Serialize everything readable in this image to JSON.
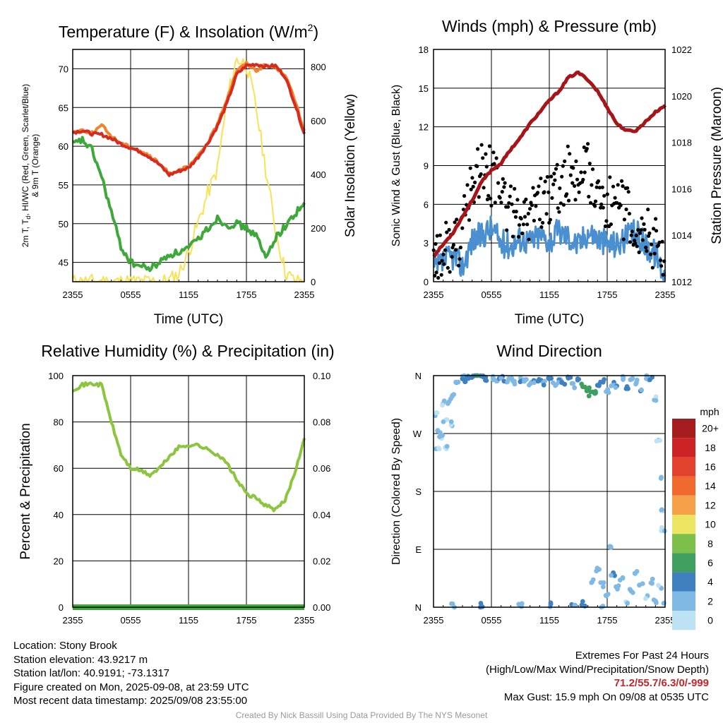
{
  "chart_data": [
    {
      "type": "line",
      "title": "Temperature (F) & Insolation (W/m²)",
      "xlabel": "Time (UTC)",
      "ylabel": "2m T, Td, HI/WC (Red, Green, Scarlet/Blue) & 9m T (Orange)",
      "ylabel_lines": [
        "2m T, T",
        "d",
        ", HI/WC (Red, Green, Scarlet/Blue)",
        "& 9m T (Orange)"
      ],
      "y2label": "Solar Insolation (Yellow)",
      "x_ticks": [
        "2355",
        "0555",
        "1155",
        "1755",
        "2355"
      ],
      "ylim": [
        42.5,
        72.5
      ],
      "y_ticks": [
        45,
        50,
        55,
        60,
        65,
        70
      ],
      "y2lim": [
        0,
        865
      ],
      "y2_ticks": [
        0,
        200,
        400,
        600,
        800
      ],
      "x_hours": [
        0,
        1,
        2,
        3,
        4,
        5,
        6,
        7,
        8,
        9,
        10,
        11,
        12,
        13,
        14,
        15,
        16,
        17,
        18,
        19,
        20,
        21,
        22,
        23,
        24
      ],
      "series": [
        {
          "key": "temp_2m",
          "color": "#d62c1f",
          "values": [
            61.8,
            62.0,
            61.6,
            61.5,
            61.0,
            60.3,
            59.8,
            59.3,
            58.6,
            57.6,
            56.3,
            56.8,
            57.2,
            58.6,
            60.4,
            62.6,
            65.6,
            69.3,
            70.4,
            70.6,
            70.3,
            70.4,
            69.0,
            65.6,
            61.6
          ]
        },
        {
          "key": "temp_9m",
          "color": "#f0842c",
          "values": [
            61.8,
            62.1,
            61.7,
            62.7,
            61.3,
            60.4,
            59.9,
            59.4,
            58.7,
            57.7,
            56.5,
            56.9,
            57.3,
            58.7,
            60.5,
            62.8,
            66.2,
            69.8,
            70.7,
            69.8,
            70.5,
            70.2,
            69.3,
            66.0,
            62.0
          ]
        },
        {
          "key": "dewpoint_2m",
          "color": "#3fa83a",
          "values": [
            60.2,
            60.8,
            59.5,
            56.0,
            51.5,
            47.0,
            45.0,
            44.5,
            44.2,
            45.0,
            46.0,
            46.3,
            46.8,
            48.0,
            49.4,
            50.7,
            49.8,
            50.0,
            49.4,
            48.5,
            45.5,
            48.2,
            49.6,
            51.2,
            52.7
          ]
        },
        {
          "key": "insolation",
          "axis": "right",
          "color": "#f7e356",
          "values": [
            0,
            0,
            0,
            0,
            0,
            0,
            0,
            0,
            0,
            0,
            5,
            30,
            110,
            220,
            330,
            420,
            680,
            830,
            810,
            650,
            420,
            200,
            40,
            0,
            0
          ]
        }
      ]
    },
    {
      "type": "line",
      "title": "Winds (mph) & Pressure (mb)",
      "xlabel": "Time (UTC)",
      "ylabel": "Sonic Wind & Gust (Blue, Black)",
      "y2label": "Station Pressure (Maroon)",
      "x_ticks": [
        "2355",
        "0555",
        "1155",
        "1755",
        "2355"
      ],
      "ylim": [
        0,
        18
      ],
      "y_ticks": [
        0,
        3,
        6,
        9,
        12,
        15,
        18
      ],
      "y2lim": [
        1012,
        1022
      ],
      "y2_ticks": [
        1012,
        1014,
        1016,
        1018,
        1020,
        1022
      ],
      "x_hours": [
        0,
        1,
        2,
        3,
        4,
        5,
        6,
        7,
        8,
        9,
        10,
        11,
        12,
        13,
        14,
        15,
        16,
        17,
        18,
        19,
        20,
        21,
        22,
        23,
        24
      ],
      "series": [
        {
          "key": "sonic_wind",
          "color": "#4a90d0",
          "values": [
            0.8,
            1.5,
            2.0,
            1.2,
            3.2,
            3.6,
            4.2,
            3.0,
            2.8,
            3.4,
            3.1,
            3.6,
            3.2,
            3.9,
            3.5,
            2.8,
            3.9,
            3.4,
            3.0,
            2.9,
            3.4,
            3.8,
            2.8,
            2.2,
            0.4
          ]
        },
        {
          "key": "gust",
          "color": "#000000",
          "style": "points",
          "values": [
            1.2,
            2.6,
            2.4,
            3.8,
            7.5,
            9.2,
            8.1,
            7.2,
            5.5,
            5.4,
            5.0,
            6.1,
            6.4,
            7.2,
            8.4,
            7.9,
            8.6,
            6.8,
            5.9,
            5.8,
            5.4,
            4.6,
            3.8,
            3.0,
            1.2
          ]
        },
        {
          "key": "pressure",
          "axis": "right",
          "color": "#a6151a",
          "values": [
            1013.1,
            1013.6,
            1014.1,
            1014.8,
            1015.5,
            1016.3,
            1016.8,
            1017.1,
            1017.7,
            1018.2,
            1018.8,
            1019.3,
            1019.8,
            1020.2,
            1020.8,
            1021.0,
            1020.7,
            1020.2,
            1019.5,
            1018.8,
            1018.5,
            1018.5,
            1018.9,
            1019.3,
            1019.6
          ]
        }
      ]
    },
    {
      "type": "line",
      "title": "Relative Humidity (%) & Precipitation (in)",
      "ylabel": "Percent & Precipitation",
      "x_ticks": [
        "2355",
        "0555",
        "1155",
        "1755",
        "2355"
      ],
      "ylim": [
        0,
        100
      ],
      "y_ticks": [
        0,
        20,
        40,
        60,
        80,
        100
      ],
      "y2lim": [
        0,
        0.1
      ],
      "y2_ticks": [
        "0.00",
        "0.02",
        "0.04",
        "0.06",
        "0.08",
        "0.10"
      ],
      "x_hours": [
        0,
        1,
        2,
        3,
        4,
        5,
        6,
        7,
        8,
        9,
        10,
        11,
        12,
        13,
        14,
        15,
        16,
        17,
        18,
        19,
        20,
        21,
        22,
        23,
        24
      ],
      "series": [
        {
          "key": "rh",
          "color": "#8cc63f",
          "values": [
            94,
            96,
            96.5,
            96,
            80,
            66,
            60,
            59,
            57,
            60,
            65,
            69,
            70,
            70,
            68,
            66,
            62,
            55,
            49,
            47,
            44,
            42,
            46,
            58,
            73
          ]
        },
        {
          "key": "precipitation",
          "axis": "right",
          "color": "#3fa83a",
          "values": [
            0,
            0,
            0,
            0,
            0,
            0,
            0,
            0,
            0,
            0,
            0,
            0,
            0,
            0,
            0,
            0,
            0,
            0,
            0,
            0,
            0,
            0,
            0,
            0,
            0
          ]
        }
      ]
    },
    {
      "type": "scatter",
      "title": "Wind Direction",
      "ylabel": "Direction (Colored By Speed)",
      "x_ticks": [
        "2355",
        "0555",
        "1155",
        "1755",
        "2355"
      ],
      "y_ticks": [
        "N",
        "E",
        "S",
        "W",
        "N"
      ],
      "ylim": [
        0,
        360
      ],
      "points": [
        {
          "h": 0.2,
          "d": 300,
          "s": 1
        },
        {
          "h": 0.4,
          "d": 245,
          "s": 1
        },
        {
          "h": 0.6,
          "d": 275,
          "s": 1
        },
        {
          "h": 0.8,
          "d": 265,
          "s": 1
        },
        {
          "h": 1.0,
          "d": 318,
          "s": 1
        },
        {
          "h": 1.2,
          "d": 290,
          "s": 1
        },
        {
          "h": 1.4,
          "d": 250,
          "s": 1
        },
        {
          "h": 1.6,
          "d": 320,
          "s": 2
        },
        {
          "h": 1.8,
          "d": 285,
          "s": 1
        },
        {
          "h": 2.0,
          "d": 330,
          "s": 2
        },
        {
          "h": 2.5,
          "d": 352,
          "s": 3
        },
        {
          "h": 3.0,
          "d": 358,
          "s": 3
        },
        {
          "h": 3.3,
          "d": 354,
          "s": 4
        },
        {
          "h": 3.6,
          "d": 357,
          "s": 4
        },
        {
          "h": 4.0,
          "d": 356,
          "s": 5
        },
        {
          "h": 4.5,
          "d": 359,
          "s": 5
        },
        {
          "h": 5.0,
          "d": 358,
          "s": 4
        },
        {
          "h": 5.5,
          "d": 355,
          "s": 4
        },
        {
          "h": 6.0,
          "d": 357,
          "s": 3
        },
        {
          "h": 6.5,
          "d": 352,
          "s": 2
        },
        {
          "h": 7.0,
          "d": 355,
          "s": 3
        },
        {
          "h": 7.5,
          "d": 350,
          "s": 3
        },
        {
          "h": 8.0,
          "d": 356,
          "s": 2
        },
        {
          "h": 8.5,
          "d": 349,
          "s": 2
        },
        {
          "h": 9.0,
          "d": 353,
          "s": 3
        },
        {
          "h": 9.5,
          "d": 351,
          "s": 2
        },
        {
          "h": 10.0,
          "d": 347,
          "s": 2
        },
        {
          "h": 10.5,
          "d": 350,
          "s": 3
        },
        {
          "h": 11.0,
          "d": 352,
          "s": 4
        },
        {
          "h": 11.5,
          "d": 348,
          "s": 3
        },
        {
          "h": 12.0,
          "d": 353,
          "s": 3
        },
        {
          "h": 12.5,
          "d": 346,
          "s": 2
        },
        {
          "h": 13.0,
          "d": 351,
          "s": 3
        },
        {
          "h": 13.5,
          "d": 349,
          "s": 4
        },
        {
          "h": 14.0,
          "d": 355,
          "s": 3
        },
        {
          "h": 14.5,
          "d": 345,
          "s": 2
        },
        {
          "h": 15.0,
          "d": 352,
          "s": 4
        },
        {
          "h": 15.5,
          "d": 343,
          "s": 6
        },
        {
          "h": 16.0,
          "d": 340,
          "s": 6
        },
        {
          "h": 16.3,
          "d": 332,
          "s": 6
        },
        {
          "h": 16.6,
          "d": 336,
          "s": 5
        },
        {
          "h": 17.0,
          "d": 348,
          "s": 4
        },
        {
          "h": 17.5,
          "d": 353,
          "s": 3
        },
        {
          "h": 18.0,
          "d": 335,
          "s": 2
        },
        {
          "h": 18.5,
          "d": 348,
          "s": 3
        },
        {
          "h": 19.0,
          "d": 342,
          "s": 3
        },
        {
          "h": 19.5,
          "d": 356,
          "s": 2
        },
        {
          "h": 20.0,
          "d": 340,
          "s": 3
        },
        {
          "h": 20.5,
          "d": 353,
          "s": 2
        },
        {
          "h": 21.0,
          "d": 350,
          "s": 3
        },
        {
          "h": 21.5,
          "d": 340,
          "s": 3
        },
        {
          "h": 22.0,
          "d": 357,
          "s": 2
        },
        {
          "h": 22.5,
          "d": 355,
          "s": 3
        },
        {
          "h": 23.0,
          "d": 325,
          "s": 1
        },
        {
          "h": 23.3,
          "d": 260,
          "s": 1
        },
        {
          "h": 23.6,
          "d": 200,
          "s": 1
        },
        {
          "h": 23.8,
          "d": 150,
          "s": 1
        },
        {
          "h": 16.5,
          "d": 40,
          "s": 2
        },
        {
          "h": 17.0,
          "d": 60,
          "s": 2
        },
        {
          "h": 17.5,
          "d": 35,
          "s": 2
        },
        {
          "h": 18.0,
          "d": 20,
          "s": 2
        },
        {
          "h": 18.3,
          "d": 95,
          "s": 2
        },
        {
          "h": 18.6,
          "d": 50,
          "s": 3
        },
        {
          "h": 19.0,
          "d": 30,
          "s": 2
        },
        {
          "h": 19.5,
          "d": 45,
          "s": 2
        },
        {
          "h": 20.0,
          "d": 10,
          "s": 1
        },
        {
          "h": 20.5,
          "d": 25,
          "s": 2
        },
        {
          "h": 21.0,
          "d": 55,
          "s": 2
        },
        {
          "h": 21.5,
          "d": 35,
          "s": 2
        },
        {
          "h": 22.0,
          "d": 15,
          "s": 1
        },
        {
          "h": 22.5,
          "d": 40,
          "s": 2
        },
        {
          "h": 23.0,
          "d": 8,
          "s": 1
        },
        {
          "h": 23.5,
          "d": 30,
          "s": 1
        },
        {
          "h": 23.8,
          "d": 120,
          "s": 1
        },
        {
          "h": 23.9,
          "d": 5,
          "s": 1
        },
        {
          "h": 2.0,
          "d": 2,
          "s": 2
        },
        {
          "h": 5.0,
          "d": 3,
          "s": 4
        },
        {
          "h": 9.0,
          "d": 2,
          "s": 2
        },
        {
          "h": 12.0,
          "d": 3,
          "s": 3
        },
        {
          "h": 14.5,
          "d": 2,
          "s": 3
        },
        {
          "h": 15.5,
          "d": 5,
          "s": 4
        },
        {
          "h": 17.5,
          "d": 3,
          "s": 2
        }
      ]
    },
    {
      "type": "legend",
      "title": "mph",
      "labels": [
        "20+",
        "18",
        "16",
        "14",
        "12",
        "10",
        "8",
        "6",
        "4",
        "2",
        "0"
      ],
      "colors": [
        "#a51c1f",
        "#cc2327",
        "#e2412d",
        "#f06a2f",
        "#f6a14a",
        "#ece563",
        "#7cc04b",
        "#3f9f5e",
        "#3f81c0",
        "#7fb9e4",
        "#bde2f4"
      ]
    }
  ],
  "colors": {
    "temp_2m": "#d62c1f",
    "temp_9m": "#f0842c",
    "dewpoint": "#3fa83a",
    "insolation": "#f7e356",
    "sonic_wind": "#4a90d0",
    "gust": "#000000",
    "pressure": "#a6151a",
    "rh": "#8cc63f",
    "precip": "#3fa83a",
    "extremes_values": "#c0282d"
  },
  "info": {
    "location": "Location: Stony Brook",
    "elevation": "Station elevation: 43.9217 m",
    "latlon": "Station lat/lon: 40.9191; -73.1317",
    "created": "Figure created on Mon, 2025-09-08, at 23:59 UTC",
    "recent": "Most recent data timestamp: 2025/09/08 23:55:00"
  },
  "extremes": {
    "title": "Extremes For Past 24 Hours",
    "subtitle": "(High/Low/Max Wind/Precipitation/Snow Depth)",
    "values": "71.2/55.7/6.3/0/-999",
    "gust": "Max Gust: 15.9 mph On 09/08 at 0535 UTC"
  },
  "credit": "Created By Nick Bassill Using Data Provided By The NYS Mesonet"
}
